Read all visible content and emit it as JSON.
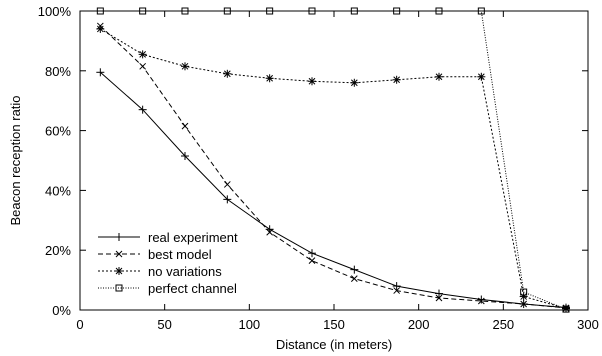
{
  "chart_data": {
    "type": "line",
    "title": "",
    "xlabel": "Distance (in meters)",
    "ylabel": "Beacon reception ratio",
    "xlim": [
      0,
      300
    ],
    "ylim": [
      0,
      100
    ],
    "x_ticks": [
      0,
      50,
      100,
      150,
      200,
      250,
      300
    ],
    "y_ticks": [
      0,
      20,
      40,
      60,
      80,
      100
    ],
    "y_tick_labels": [
      "0%",
      "20%",
      "40%",
      "60%",
      "80%",
      "100%"
    ],
    "x_tick_labels": [
      "0",
      "50",
      "100",
      "150",
      "200",
      "250",
      "300"
    ],
    "grid": false,
    "legend_position": "bottom-left",
    "x": [
      12,
      37,
      62,
      87,
      112,
      137,
      162,
      187,
      212,
      237,
      262,
      287
    ],
    "series": [
      {
        "name": "real experiment",
        "marker": "plus",
        "dash": "solid",
        "values": [
          79.5,
          67,
          51.5,
          37,
          27,
          19,
          13.5,
          8,
          5.5,
          3.5,
          2,
          0.8
        ]
      },
      {
        "name": "best model",
        "marker": "cross",
        "dash": "dashed",
        "values": [
          95,
          81.5,
          61.5,
          42,
          26,
          16.5,
          10.5,
          6.5,
          4,
          3,
          2,
          0.7
        ]
      },
      {
        "name": "no variations",
        "marker": "star",
        "dash": "dotted",
        "values": [
          94,
          85.5,
          81.5,
          79,
          77.5,
          76.5,
          76,
          77,
          78,
          78,
          4.5,
          0.5
        ]
      },
      {
        "name": "perfect channel",
        "marker": "square",
        "dash": "fine-dotted",
        "values": [
          100,
          100,
          100,
          100,
          100,
          100,
          100,
          100,
          100,
          100,
          6,
          0.3
        ]
      }
    ]
  }
}
